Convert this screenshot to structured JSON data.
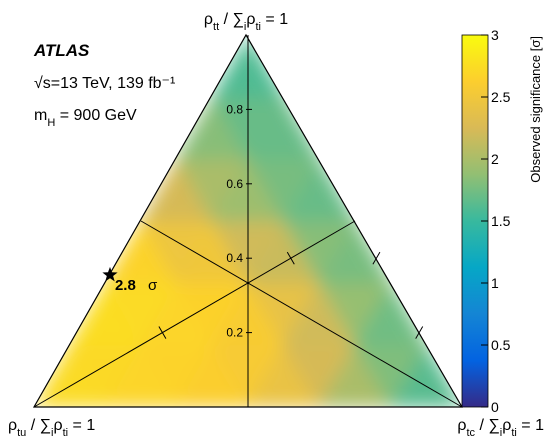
{
  "chart_data": {
    "type": "ternary",
    "experiment": "ATLAS",
    "energy_label": "√s=13 TeV, 139 fb⁻¹",
    "mass_label": [
      "m",
      "H",
      " = 900 GeV"
    ],
    "top_label": [
      "ρ",
      "tt",
      " / ∑",
      "i",
      "ρ",
      "ti",
      " = 1"
    ],
    "left_label": [
      "ρ",
      "tu",
      " / ∑",
      "i",
      "ρ",
      "ti",
      " = 1"
    ],
    "right_label": [
      "ρ",
      "tc",
      " / ∑",
      "i",
      "ρ",
      "ti",
      " = 1"
    ],
    "ylim": [
      0,
      1
    ],
    "yticks": [
      0.2,
      0.4,
      0.6,
      0.8
    ],
    "grid_step": 0.16666666666666666,
    "z": [
      [
        2.75,
        2.7,
        2.65,
        2.55,
        2.2,
        1.8,
        1.5
      ],
      [
        2.75,
        2.7,
        2.65,
        2.5,
        2.0,
        1.6
      ],
      [
        2.8,
        2.7,
        2.6,
        2.1,
        1.6
      ],
      [
        2.5,
        2.2,
        1.8,
        1.6
      ],
      [
        2.0,
        1.8,
        1.7
      ],
      [
        1.7,
        1.6
      ],
      [
        1.5
      ]
    ],
    "zlim": [
      0,
      3
    ],
    "zticks": [
      0,
      0.5,
      1,
      1.5,
      2,
      2.5,
      3
    ],
    "zlabel": "Observed significance [σ]",
    "best_fit": {
      "rho_tt": 0.355,
      "rho_tc": 0,
      "significance": 2.8,
      "unit": "σ"
    }
  }
}
